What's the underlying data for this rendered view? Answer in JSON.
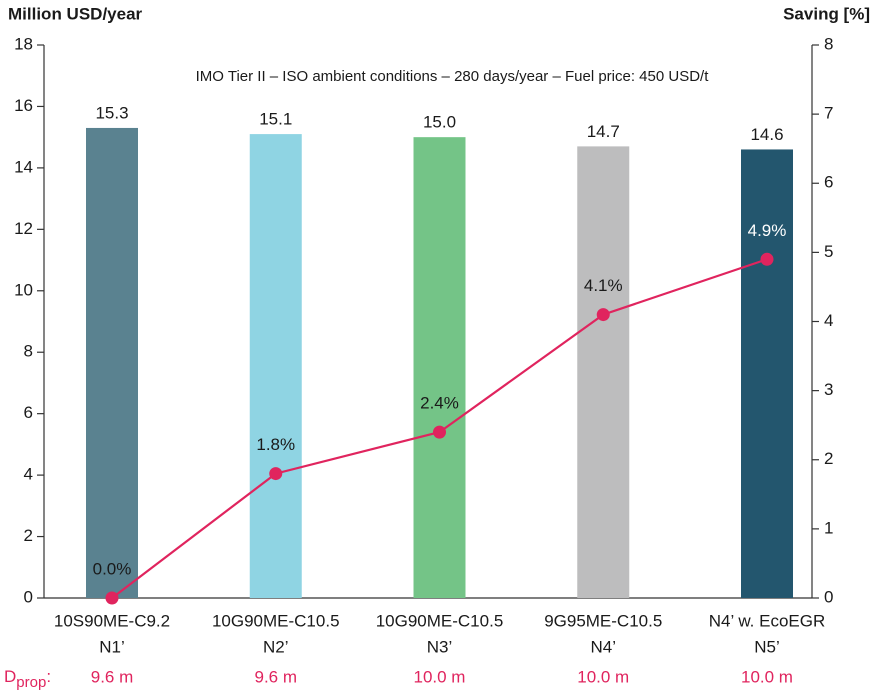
{
  "chart_data": {
    "type": "bar",
    "y_axis_label": "Million USD/year",
    "y2_axis_label": "Saving [%]",
    "annotation": "IMO Tier II – ISO ambient conditions – 280 days/year – Fuel price: 450 USD/t",
    "categories": [
      "10S90ME-C9.2",
      "10G90ME-C10.5",
      "10G90ME-C10.5",
      "9G95ME-C10.5",
      "N4’ w. EcoEGR"
    ],
    "category_sublabels": [
      "N1’",
      "N2’",
      "N3’",
      "N4’",
      "N5’"
    ],
    "row_label": "D",
    "row_label_sub": "prop",
    "row_label_suffix": ":",
    "row_values": [
      "9.6 m",
      "9.6 m",
      "10.0 m",
      "10.0 m",
      "10.0 m"
    ],
    "row_color": "#e0245e",
    "series": [
      {
        "type": "bar",
        "values": [
          15.3,
          15.1,
          15.0,
          14.7,
          14.6
        ],
        "value_labels": [
          "15.3",
          "15.1",
          "15.0",
          "14.7",
          "14.6"
        ],
        "colors": [
          "#5a8290",
          "#8fd4e3",
          "#74c487",
          "#bdbdbe",
          "#23566e"
        ]
      },
      {
        "type": "line",
        "axis": "y2",
        "color": "#e0245e",
        "values": [
          0.0,
          1.8,
          2.4,
          4.1,
          4.9
        ],
        "value_labels": [
          "0.0%",
          "1.8%",
          "2.4%",
          "4.1%",
          "4.9%"
        ],
        "value_label_colors": [
          "#1a1a1a",
          "#1a1a1a",
          "#1a1a1a",
          "#1a1a1a",
          "#ffffff"
        ]
      }
    ],
    "ylim": [
      0,
      18
    ],
    "yticks": [
      0,
      2,
      4,
      6,
      8,
      10,
      12,
      14,
      16,
      18
    ],
    "y2lim": [
      0,
      8
    ],
    "y2ticks": [
      0,
      1,
      2,
      3,
      4,
      5,
      6,
      7,
      8
    ]
  }
}
